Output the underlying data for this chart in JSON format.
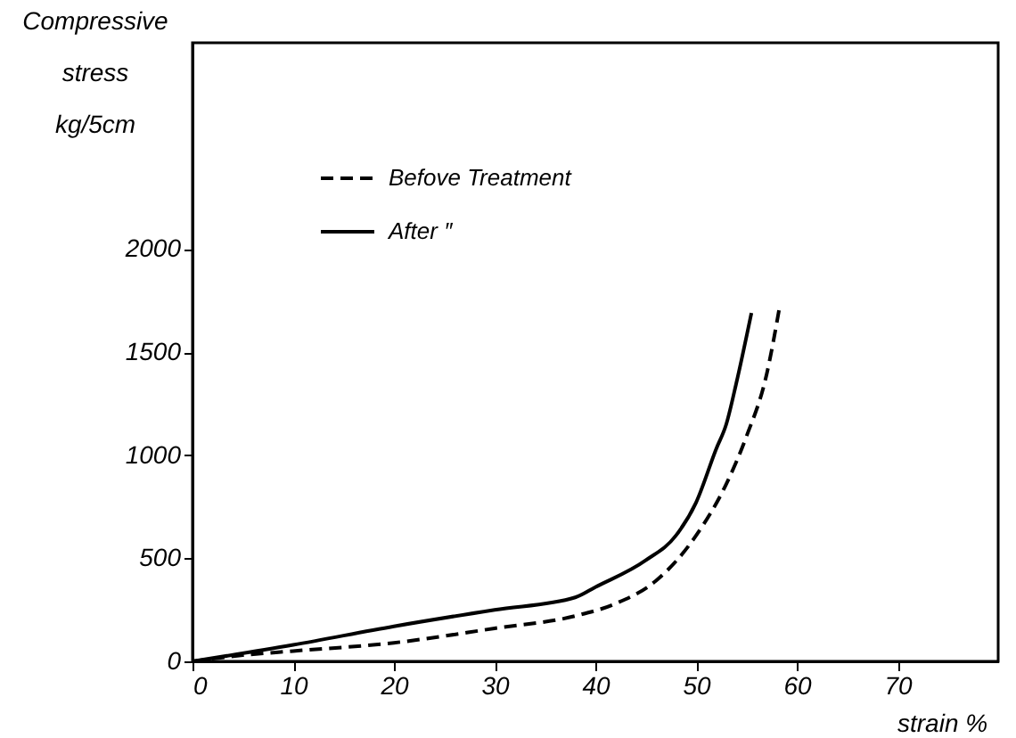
{
  "chart_data": {
    "type": "line",
    "xlabel": "strain %",
    "ylabel": "Compressive stress kg/5cm",
    "xlim": [
      0,
      80
    ],
    "ylim": [
      0,
      3000
    ],
    "xticks": [
      0,
      10,
      20,
      30,
      40,
      50,
      60,
      70
    ],
    "yticks": [
      0,
      500,
      1000,
      1500,
      2000
    ],
    "grid": false,
    "legend": "top left",
    "marker": "none",
    "series": [
      {
        "name": "Befove Treatment",
        "color": "#000000",
        "line_style": "dashed",
        "x": [
          0,
          5,
          10,
          20,
          30,
          38,
          42,
          46,
          50,
          53,
          55,
          57,
          58.3
        ],
        "values": [
          0,
          30,
          50,
          90,
          160,
          220,
          280,
          390,
          610,
          860,
          1090,
          1390,
          1720
        ]
      },
      {
        "name": "After    ″",
        "color": "#000000",
        "line_style": "solid",
        "x": [
          0,
          10,
          20,
          30,
          38,
          40,
          45,
          48,
          50,
          52,
          53,
          54,
          55.5
        ],
        "values": [
          0,
          80,
          170,
          250,
          310,
          360,
          490,
          610,
          770,
          1030,
          1150,
          1350,
          1690
        ]
      }
    ]
  }
}
